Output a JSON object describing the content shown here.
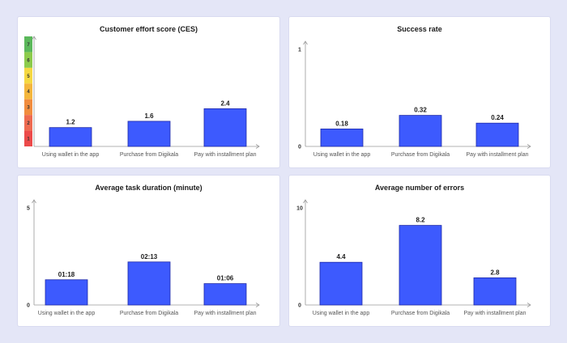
{
  "colors": {
    "bar": "#3d5afe",
    "bar_stroke": "#1f2aa8",
    "axis": "#9a9a9a"
  },
  "ces_scale": {
    "labels": [
      "7",
      "6",
      "5",
      "4",
      "3",
      "2",
      "1"
    ],
    "colors": [
      "#5bb85b",
      "#8ccb4c",
      "#f5d842",
      "#f4b63c",
      "#f18c3e",
      "#ee6a50",
      "#ec4a4a"
    ]
  },
  "chart_data": [
    {
      "type": "bar",
      "title": "Customer effort score (CES)",
      "categories": [
        "Using wallet in the app",
        "Purchase from Digikala",
        "Pay with installment plan"
      ],
      "values": [
        1.2,
        1.6,
        2.4
      ],
      "value_labels": [
        "1.2",
        "1.6",
        "2.4"
      ],
      "ylim": [
        0,
        7
      ],
      "yticks": [],
      "legend": "none"
    },
    {
      "type": "bar",
      "title": "Success rate",
      "categories": [
        "Using wallet in the app",
        "Purchase from Digikala",
        "Pay with installment plan"
      ],
      "values": [
        0.18,
        0.32,
        0.24
      ],
      "value_labels": [
        "0.18",
        "0.32",
        "0.24"
      ],
      "ylim": [
        0,
        1
      ],
      "yticks": [
        "1",
        "0"
      ],
      "legend": "none"
    },
    {
      "type": "bar",
      "title": "Average task duration (minute)",
      "categories": [
        "Using wallet in the app",
        "Purchase from Digikala",
        "Pay with installment plan"
      ],
      "values": [
        1.3,
        2.217,
        1.1
      ],
      "value_labels": [
        "01:18",
        "02:13",
        "01:06"
      ],
      "ylim": [
        0,
        5
      ],
      "yticks": [
        "5",
        "0"
      ],
      "legend": "none"
    },
    {
      "type": "bar",
      "title": "Average number of errors",
      "categories": [
        "Using wallet in the app",
        "Purchase from Digikala",
        "Pay with installment plan"
      ],
      "values": [
        4.4,
        8.2,
        2.8
      ],
      "value_labels": [
        "4.4",
        "8.2",
        "2.8"
      ],
      "ylim": [
        0,
        10
      ],
      "yticks": [
        "10",
        "0"
      ],
      "legend": "none"
    }
  ]
}
